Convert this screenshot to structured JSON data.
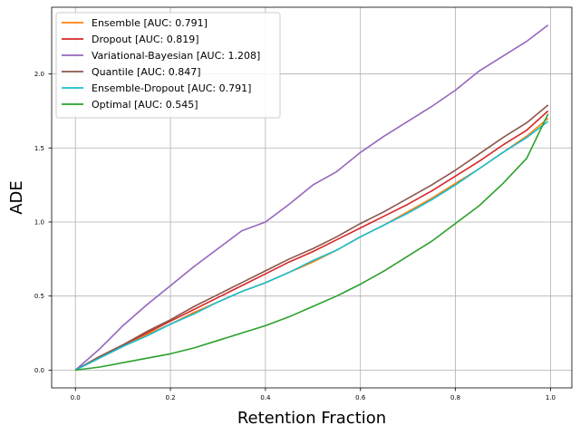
{
  "chart_data": {
    "type": "line",
    "title": "",
    "xlabel": "Retention Fraction",
    "ylabel": "ADE",
    "xlim": [
      -0.05,
      1.045
    ],
    "ylim": [
      -0.12,
      2.45
    ],
    "xticks": [
      0.0,
      0.2,
      0.4,
      0.6,
      0.8,
      1.0
    ],
    "xtick_labels": [
      "0.0",
      "0.2",
      "0.4",
      "0.6",
      "0.8",
      "1.0"
    ],
    "yticks": [
      0.0,
      0.5,
      1.0,
      1.5,
      2.0
    ],
    "ytick_labels": [
      "0.0",
      "0.5",
      "1.0",
      "1.5",
      "2.0"
    ],
    "grid": true,
    "legend_position": "top-left",
    "x": [
      0.0,
      0.05,
      0.1,
      0.15,
      0.2,
      0.25,
      0.3,
      0.35,
      0.4,
      0.45,
      0.5,
      0.55,
      0.6,
      0.65,
      0.7,
      0.75,
      0.8,
      0.85,
      0.9,
      0.95,
      0.995
    ],
    "series": [
      {
        "name": "Ensemble [AUC: 0.791]",
        "color": "#ff7f0e",
        "values": [
          0.0,
          0.08,
          0.16,
          0.24,
          0.31,
          0.39,
          0.46,
          0.53,
          0.59,
          0.66,
          0.73,
          0.81,
          0.9,
          0.98,
          1.07,
          1.16,
          1.26,
          1.36,
          1.47,
          1.58,
          1.7
        ]
      },
      {
        "name": "Dropout [AUC: 0.819]",
        "color": "#d62728",
        "values": [
          0.0,
          0.09,
          0.17,
          0.25,
          0.33,
          0.41,
          0.49,
          0.57,
          0.65,
          0.73,
          0.8,
          0.88,
          0.96,
          1.04,
          1.12,
          1.21,
          1.31,
          1.41,
          1.52,
          1.62,
          1.75
        ]
      },
      {
        "name": "Variational-Bayesian [AUC: 1.208]",
        "color": "#9467bd",
        "values": [
          0.0,
          0.14,
          0.3,
          0.44,
          0.57,
          0.7,
          0.82,
          0.94,
          1.0,
          1.12,
          1.25,
          1.34,
          1.47,
          1.58,
          1.68,
          1.78,
          1.89,
          2.02,
          2.12,
          2.22,
          2.33
        ]
      },
      {
        "name": "Quantile [AUC: 0.847]",
        "color": "#8c564b",
        "values": [
          0.0,
          0.09,
          0.17,
          0.26,
          0.34,
          0.43,
          0.51,
          0.59,
          0.67,
          0.75,
          0.82,
          0.9,
          0.99,
          1.07,
          1.16,
          1.25,
          1.35,
          1.46,
          1.57,
          1.67,
          1.79
        ]
      },
      {
        "name": "Ensemble-Dropout [AUC: 0.791]",
        "color": "#17becf",
        "values": [
          0.0,
          0.08,
          0.16,
          0.23,
          0.31,
          0.38,
          0.46,
          0.53,
          0.59,
          0.66,
          0.74,
          0.81,
          0.9,
          0.98,
          1.06,
          1.15,
          1.25,
          1.36,
          1.47,
          1.57,
          1.68
        ]
      },
      {
        "name": "Optimal [AUC: 0.545]",
        "color": "#2ca02c",
        "values": [
          0.0,
          0.02,
          0.05,
          0.08,
          0.11,
          0.15,
          0.2,
          0.25,
          0.3,
          0.36,
          0.43,
          0.5,
          0.58,
          0.67,
          0.77,
          0.87,
          0.99,
          1.11,
          1.26,
          1.43,
          1.73
        ]
      }
    ]
  }
}
